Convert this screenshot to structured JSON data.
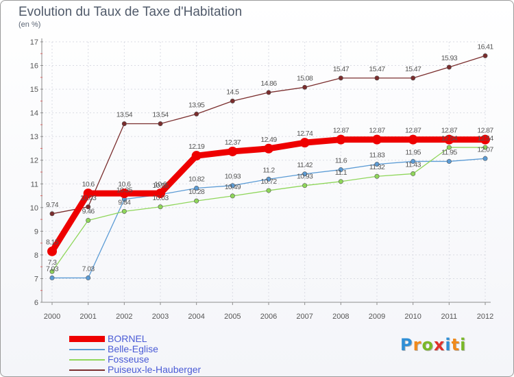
{
  "title": "Evolution du Taux de Taxe d'Habitation",
  "subtitle": "(en %)",
  "logo": {
    "letters": [
      "P",
      "r",
      "o",
      "x",
      "i",
      "t",
      "i"
    ],
    "colors": [
      "#2f8fd6",
      "#f08a1c",
      "#7ab828",
      "#e0312b",
      "#2f8fd6",
      "#f08a1c",
      "#7ab828"
    ]
  },
  "chart_data": {
    "type": "line",
    "x": [
      "2000",
      "2001",
      "2002",
      "2003",
      "2004",
      "2005",
      "2006",
      "2007",
      "2008",
      "2009",
      "2010",
      "2011",
      "2012"
    ],
    "ylim": [
      6,
      17
    ],
    "yticks": [
      "6",
      "7",
      "8",
      "9",
      "10",
      "11",
      "12",
      "13",
      "14",
      "15",
      "16",
      "17"
    ],
    "grid": true,
    "legend_position": "bottom-left",
    "series": [
      {
        "name": "BORNEL",
        "color": "#ee0000",
        "values": [
          8.15,
          10.6,
          10.6,
          10.6,
          12.19,
          12.37,
          12.49,
          12.74,
          12.87,
          12.87,
          12.87,
          12.87,
          12.87
        ],
        "labels": [
          "8.15",
          "10.6",
          "10.6",
          "10.6",
          "12.19",
          "12.37",
          "12.49",
          "12.74",
          "12.87",
          "12.87",
          "12.87",
          "12.87",
          "12.87"
        ]
      },
      {
        "name": "Belle-Eglise",
        "color": "#5b9bd5",
        "values": [
          7.03,
          7.03,
          10.35,
          10.55,
          10.82,
          10.93,
          11.2,
          11.42,
          11.6,
          11.83,
          11.95,
          11.95,
          12.07
        ],
        "labels": [
          "7.03",
          "7.03",
          "10.35",
          "10.55",
          "10.82",
          "10.93",
          "11.2",
          "11.42",
          "11.6",
          "11.83",
          "11.95",
          "11.95",
          "12.07"
        ]
      },
      {
        "name": "Fosseuse",
        "color": "#8fd65a",
        "values": [
          7.3,
          9.46,
          9.84,
          10.03,
          10.28,
          10.49,
          10.72,
          10.93,
          11.1,
          11.32,
          11.43,
          12.54,
          12.54
        ],
        "labels": [
          "7.3",
          "9.46",
          "9.84",
          "10.03",
          "10.28",
          "10.49",
          "10.72",
          "10.93",
          "11.1",
          "11.32",
          "11.43",
          "12.54",
          "12.54"
        ]
      },
      {
        "name": "Puiseux-le-Hauberger",
        "color": "#7a2d2d",
        "values": [
          9.74,
          10.03,
          13.54,
          13.54,
          13.95,
          14.5,
          14.86,
          15.08,
          15.47,
          15.47,
          15.47,
          15.93,
          16.41
        ],
        "labels": [
          "9.74",
          "10.03",
          "13.54",
          "13.54",
          "13.95",
          "14.5",
          "14.86",
          "15.08",
          "15.47",
          "15.47",
          "15.47",
          "15.93",
          "16.41"
        ]
      }
    ]
  }
}
